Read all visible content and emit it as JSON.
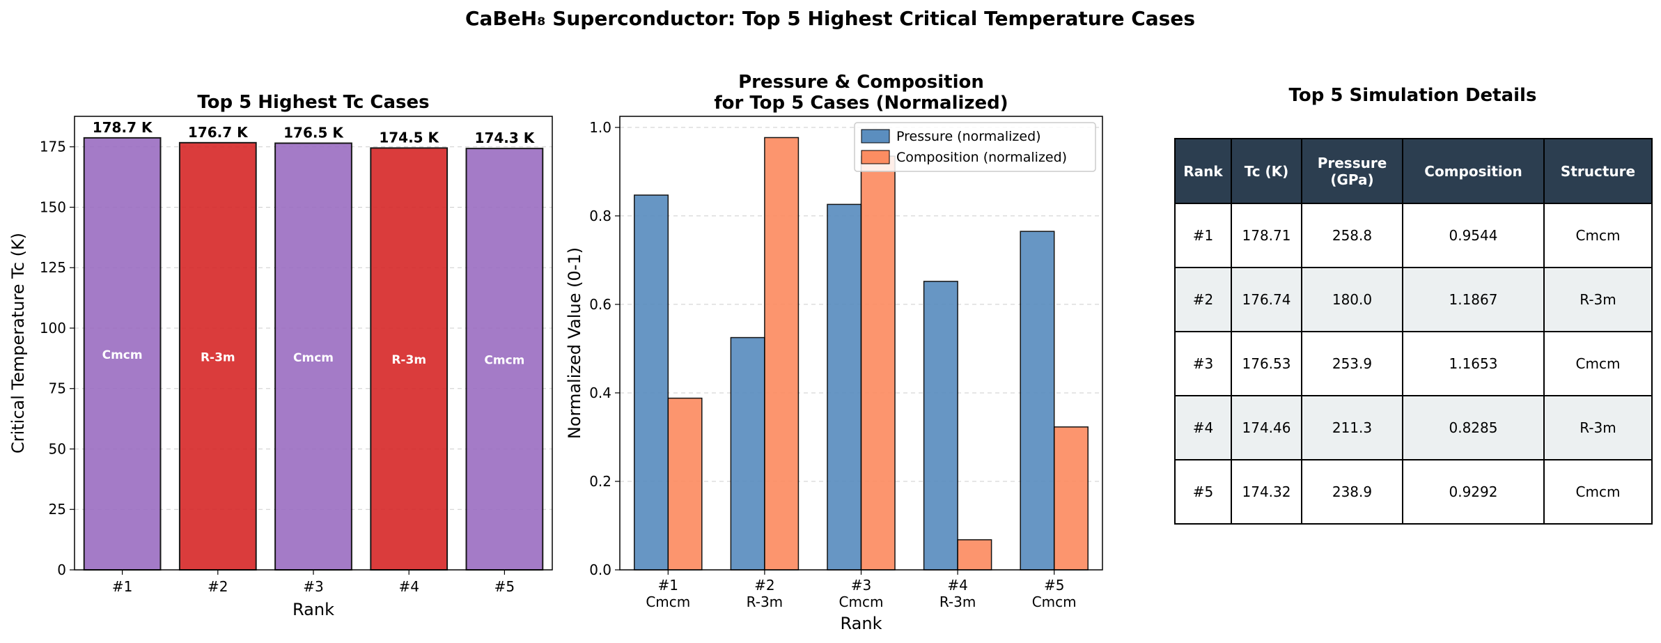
{
  "suptitle": "CaBeH₈ Superconductor: Top 5 Highest Critical Temperature Cases",
  "colors": {
    "Cmcm": "#9b6dc2",
    "R-3m": "#d62728",
    "pressure": "#5b8ebf",
    "composition": "#fc8d62",
    "header": "#2c3e50",
    "alt_row": "#ecf0f1"
  },
  "chart_data": [
    {
      "type": "bar",
      "title": "Top 5 Highest Tc Cases",
      "xlabel": "Rank",
      "ylabel": "Critical Temperature Tc (K)",
      "categories": [
        "#1",
        "#2",
        "#3",
        "#4",
        "#5"
      ],
      "values": [
        178.7,
        176.7,
        176.5,
        174.5,
        174.3
      ],
      "data_labels": [
        "178.7 K",
        "176.7 K",
        "176.5 K",
        "174.5 K",
        "174.3 K"
      ],
      "structures": [
        "Cmcm",
        "R-3m",
        "Cmcm",
        "R-3m",
        "Cmcm"
      ],
      "ylim": [
        0,
        187.6
      ],
      "yticks": [
        0,
        25,
        50,
        75,
        100,
        125,
        150,
        175
      ],
      "grid": "y-dashed"
    },
    {
      "type": "bar",
      "title": "Pressure & Composition\nfor Top 5 Cases (Normalized)",
      "title_lines": [
        "Pressure & Composition",
        "for Top 5 Cases (Normalized)"
      ],
      "xlabel": "Rank",
      "ylabel": "Normalized Value (0-1)",
      "categories": [
        "#1",
        "#2",
        "#3",
        "#4",
        "#5"
      ],
      "category_sublabels": [
        "Cmcm",
        "R-3m",
        "Cmcm",
        "R-3m",
        "Cmcm"
      ],
      "series": [
        {
          "name": "Pressure (normalized)",
          "values": [
            0.847,
            0.525,
            0.826,
            0.652,
            0.765
          ]
        },
        {
          "name": "Composition (normalized)",
          "values": [
            0.388,
            0.977,
            0.935,
            0.068,
            0.323
          ]
        }
      ],
      "ylim": [
        0,
        1.025
      ],
      "yticks": [
        0.0,
        0.2,
        0.4,
        0.6,
        0.8,
        1.0
      ],
      "legend": "top-right",
      "grid": "y-dashed"
    },
    {
      "type": "table",
      "title": "Top 5 Simulation Details",
      "columns": [
        "Rank",
        "Tc (K)",
        "Pressure\n(GPa)",
        "Composition",
        "Structure"
      ],
      "column_lines": [
        [
          "Rank"
        ],
        [
          "Tc (K)"
        ],
        [
          "Pressure",
          "(GPa)"
        ],
        [
          "Composition"
        ],
        [
          "Structure"
        ]
      ],
      "rows": [
        [
          "#1",
          "178.71",
          "258.8",
          "0.9544",
          "Cmcm"
        ],
        [
          "#2",
          "176.74",
          "180.0",
          "1.1867",
          "R-3m"
        ],
        [
          "#3",
          "176.53",
          "253.9",
          "1.1653",
          "Cmcm"
        ],
        [
          "#4",
          "174.46",
          "211.3",
          "0.8285",
          "R-3m"
        ],
        [
          "#5",
          "174.32",
          "238.9",
          "0.9292",
          "Cmcm"
        ]
      ]
    }
  ]
}
